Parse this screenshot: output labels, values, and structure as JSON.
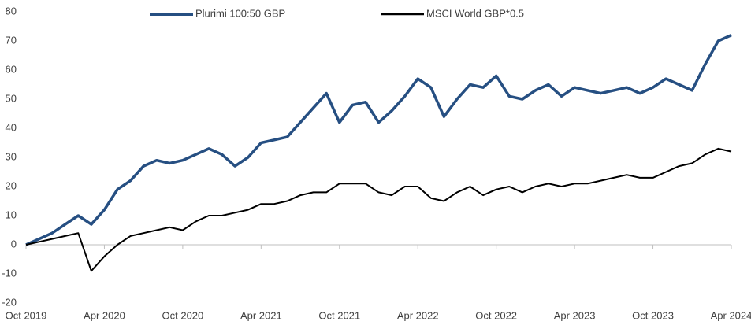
{
  "chart_data": {
    "type": "line",
    "x": [
      "2019-10",
      "2019-11",
      "2019-12",
      "2020-01",
      "2020-02",
      "2020-03",
      "2020-04",
      "2020-05",
      "2020-06",
      "2020-07",
      "2020-08",
      "2020-09",
      "2020-10",
      "2020-11",
      "2020-12",
      "2021-01",
      "2021-02",
      "2021-03",
      "2021-04",
      "2021-05",
      "2021-06",
      "2021-07",
      "2021-08",
      "2021-09",
      "2021-10",
      "2021-11",
      "2021-12",
      "2022-01",
      "2022-02",
      "2022-03",
      "2022-04",
      "2022-05",
      "2022-06",
      "2022-07",
      "2022-08",
      "2022-09",
      "2022-10",
      "2022-11",
      "2022-12",
      "2023-01",
      "2023-02",
      "2023-03",
      "2023-04",
      "2023-05",
      "2023-06",
      "2023-07",
      "2023-08",
      "2023-09",
      "2023-10",
      "2023-11",
      "2023-12",
      "2024-01",
      "2024-02",
      "2024-03",
      "2024-04"
    ],
    "series": [
      {
        "name": "Plurimi 100:50 GBP",
        "color": "#264f82",
        "values": [
          0,
          2,
          4,
          7,
          10,
          7,
          12,
          19,
          22,
          27,
          29,
          28,
          29,
          31,
          33,
          31,
          27,
          30,
          35,
          36,
          37,
          42,
          47,
          52,
          42,
          48,
          49,
          42,
          46,
          51,
          57,
          54,
          44,
          50,
          55,
          54,
          58,
          51,
          50,
          53,
          55,
          51,
          54,
          53,
          52,
          53,
          54,
          52,
          54,
          57,
          55,
          53,
          62,
          70,
          72
        ]
      },
      {
        "name": "MSCI World GBP*0.5",
        "color": "#000000",
        "values": [
          0,
          1,
          2,
          3,
          4,
          -9,
          -4,
          0,
          3,
          4,
          5,
          6,
          5,
          8,
          10,
          10,
          11,
          12,
          14,
          14,
          15,
          17,
          18,
          18,
          21,
          21,
          21,
          18,
          17,
          20,
          20,
          16,
          15,
          18,
          20,
          17,
          19,
          20,
          18,
          20,
          21,
          20,
          21,
          21,
          22,
          23,
          24,
          23,
          23,
          25,
          27,
          28,
          31,
          33,
          32
        ]
      }
    ],
    "xlim": [
      "2019-10",
      "2024-04"
    ],
    "xticks": [
      {
        "value": "2019-10",
        "label": "Oct 2019"
      },
      {
        "value": "2020-04",
        "label": "Apr 2020"
      },
      {
        "value": "2020-10",
        "label": "Oct 2020"
      },
      {
        "value": "2021-04",
        "label": "Apr 2021"
      },
      {
        "value": "2021-10",
        "label": "Oct 2021"
      },
      {
        "value": "2022-04",
        "label": "Apr 2022"
      },
      {
        "value": "2022-10",
        "label": "Oct 2022"
      },
      {
        "value": "2023-04",
        "label": "Apr 2023"
      },
      {
        "value": "2023-10",
        "label": "Oct 2023"
      },
      {
        "value": "2024-04",
        "label": "Apr 2024"
      }
    ],
    "ylim": [
      -20,
      80
    ],
    "yticks": [
      -20,
      -10,
      0,
      10,
      20,
      30,
      40,
      50,
      60,
      70,
      80
    ],
    "legend": "top"
  }
}
